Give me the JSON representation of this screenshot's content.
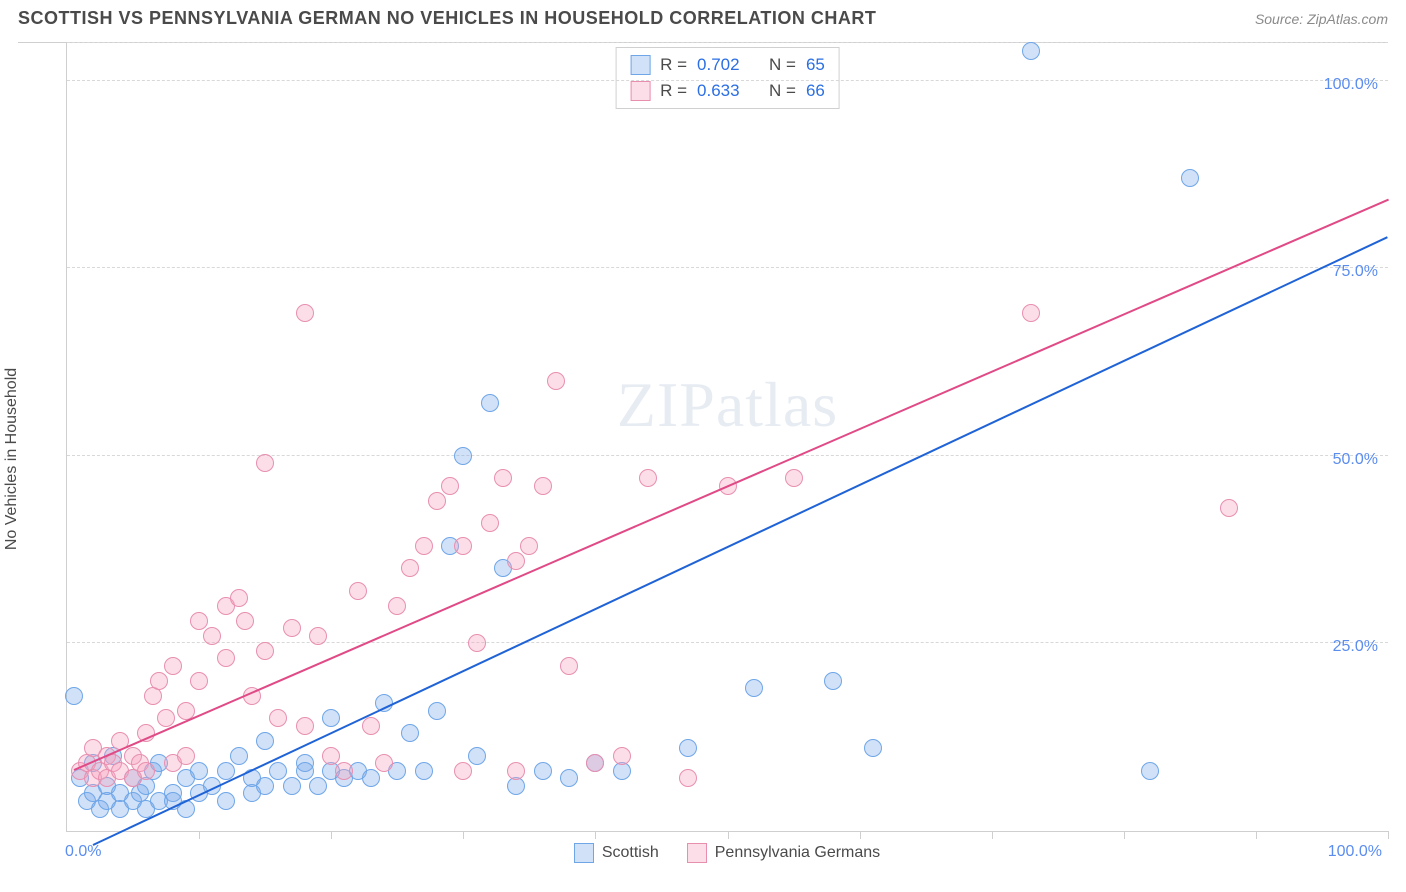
{
  "header": {
    "title": "SCOTTISH VS PENNSYLVANIA GERMAN NO VEHICLES IN HOUSEHOLD CORRELATION CHART",
    "source_prefix": "Source: ",
    "source_name": "ZipAtlas.com"
  },
  "chart": {
    "type": "scatter",
    "ylabel": "No Vehicles in Household",
    "watermark": "ZIPatlas",
    "background_color": "#ffffff",
    "grid_color": "#d8d8d8",
    "axis_color": "#cfcfcf",
    "tick_label_color": "#5b8def",
    "xlim": [
      0,
      100
    ],
    "ylim": [
      0,
      105
    ],
    "yticks": [
      {
        "v": 25,
        "label": "25.0%"
      },
      {
        "v": 50,
        "label": "50.0%"
      },
      {
        "v": 75,
        "label": "75.0%"
      },
      {
        "v": 100,
        "label": "100.0%"
      }
    ],
    "x_origin_label": "0.0%",
    "x_max_label": "100.0%",
    "xtick_positions": [
      10,
      20,
      30,
      40,
      50,
      60,
      70,
      80,
      90,
      100
    ],
    "gridline_extra_top": 105,
    "point_radius": 9,
    "point_border_width": 1.2,
    "series": [
      {
        "key": "scottish",
        "label": "Scottish",
        "fill": "rgba(120,170,235,0.35)",
        "stroke": "#6fa6e8",
        "trend_color": "#1f63d6",
        "R": "0.702",
        "N": "65",
        "trend": {
          "x1": 2,
          "y1": -2,
          "x2": 100,
          "y2": 79
        },
        "points": [
          [
            0.5,
            18
          ],
          [
            1,
            7
          ],
          [
            1.5,
            4
          ],
          [
            2,
            5
          ],
          [
            2,
            9
          ],
          [
            2.5,
            3
          ],
          [
            3,
            6
          ],
          [
            3,
            4
          ],
          [
            3.5,
            10
          ],
          [
            4,
            5
          ],
          [
            4,
            3
          ],
          [
            5,
            4
          ],
          [
            5,
            7
          ],
          [
            5.5,
            5
          ],
          [
            6,
            3
          ],
          [
            6,
            6
          ],
          [
            6.5,
            8
          ],
          [
            7,
            4
          ],
          [
            7,
            9
          ],
          [
            8,
            5
          ],
          [
            8,
            4
          ],
          [
            9,
            3
          ],
          [
            9,
            7
          ],
          [
            10,
            8
          ],
          [
            10,
            5
          ],
          [
            11,
            6
          ],
          [
            12,
            4
          ],
          [
            12,
            8
          ],
          [
            13,
            10
          ],
          [
            14,
            5
          ],
          [
            14,
            7
          ],
          [
            15,
            6
          ],
          [
            15,
            12
          ],
          [
            16,
            8
          ],
          [
            17,
            6
          ],
          [
            18,
            9
          ],
          [
            18,
            8
          ],
          [
            19,
            6
          ],
          [
            20,
            8
          ],
          [
            20,
            15
          ],
          [
            21,
            7
          ],
          [
            22,
            8
          ],
          [
            23,
            7
          ],
          [
            24,
            17
          ],
          [
            25,
            8
          ],
          [
            26,
            13
          ],
          [
            27,
            8
          ],
          [
            28,
            16
          ],
          [
            29,
            38
          ],
          [
            30,
            50
          ],
          [
            31,
            10
          ],
          [
            32,
            57
          ],
          [
            33,
            35
          ],
          [
            34,
            6
          ],
          [
            36,
            8
          ],
          [
            38,
            7
          ],
          [
            40,
            9
          ],
          [
            42,
            8
          ],
          [
            47,
            11
          ],
          [
            52,
            19
          ],
          [
            58,
            20
          ],
          [
            73,
            104
          ],
          [
            85,
            87
          ],
          [
            82,
            8
          ],
          [
            61,
            11
          ]
        ]
      },
      {
        "key": "penn_german",
        "label": "Pennsylvania Germans",
        "fill": "rgba(245,160,190,0.35)",
        "stroke": "#e88fb0",
        "trend_color": "#e04a86",
        "R": "0.633",
        "N": "66",
        "trend": {
          "x1": 0.5,
          "y1": 8,
          "x2": 100,
          "y2": 84
        },
        "points": [
          [
            1,
            8
          ],
          [
            1.5,
            9
          ],
          [
            2,
            7
          ],
          [
            2,
            11
          ],
          [
            2.5,
            8
          ],
          [
            3,
            7
          ],
          [
            3,
            10
          ],
          [
            3.5,
            9
          ],
          [
            4,
            8
          ],
          [
            4,
            12
          ],
          [
            5,
            7
          ],
          [
            5,
            10
          ],
          [
            5.5,
            9
          ],
          [
            6,
            8
          ],
          [
            6,
            13
          ],
          [
            6.5,
            18
          ],
          [
            7,
            20
          ],
          [
            7.5,
            15
          ],
          [
            8,
            9
          ],
          [
            8,
            22
          ],
          [
            9,
            10
          ],
          [
            9,
            16
          ],
          [
            10,
            20
          ],
          [
            10,
            28
          ],
          [
            11,
            26
          ],
          [
            12,
            23
          ],
          [
            12,
            30
          ],
          [
            13,
            31
          ],
          [
            13.5,
            28
          ],
          [
            14,
            18
          ],
          [
            15,
            24
          ],
          [
            15,
            49
          ],
          [
            16,
            15
          ],
          [
            17,
            27
          ],
          [
            18,
            14
          ],
          [
            18,
            69
          ],
          [
            19,
            26
          ],
          [
            20,
            10
          ],
          [
            21,
            8
          ],
          [
            22,
            32
          ],
          [
            23,
            14
          ],
          [
            24,
            9
          ],
          [
            25,
            30
          ],
          [
            26,
            35
          ],
          [
            28,
            44
          ],
          [
            29,
            46
          ],
          [
            30,
            38
          ],
          [
            31,
            25
          ],
          [
            32,
            41
          ],
          [
            33,
            47
          ],
          [
            34,
            36
          ],
          [
            35,
            38
          ],
          [
            36,
            46
          ],
          [
            37,
            60
          ],
          [
            38,
            22
          ],
          [
            40,
            9
          ],
          [
            42,
            10
          ],
          [
            44,
            47
          ],
          [
            47,
            7
          ],
          [
            50,
            46
          ],
          [
            55,
            47
          ],
          [
            73,
            69
          ],
          [
            88,
            43
          ],
          [
            34,
            8
          ],
          [
            27,
            38
          ],
          [
            30,
            8
          ]
        ]
      }
    ],
    "stat_legend": {
      "R_label": "R =",
      "N_label": "N ="
    },
    "bottom_legend_swatch_size": 20
  }
}
